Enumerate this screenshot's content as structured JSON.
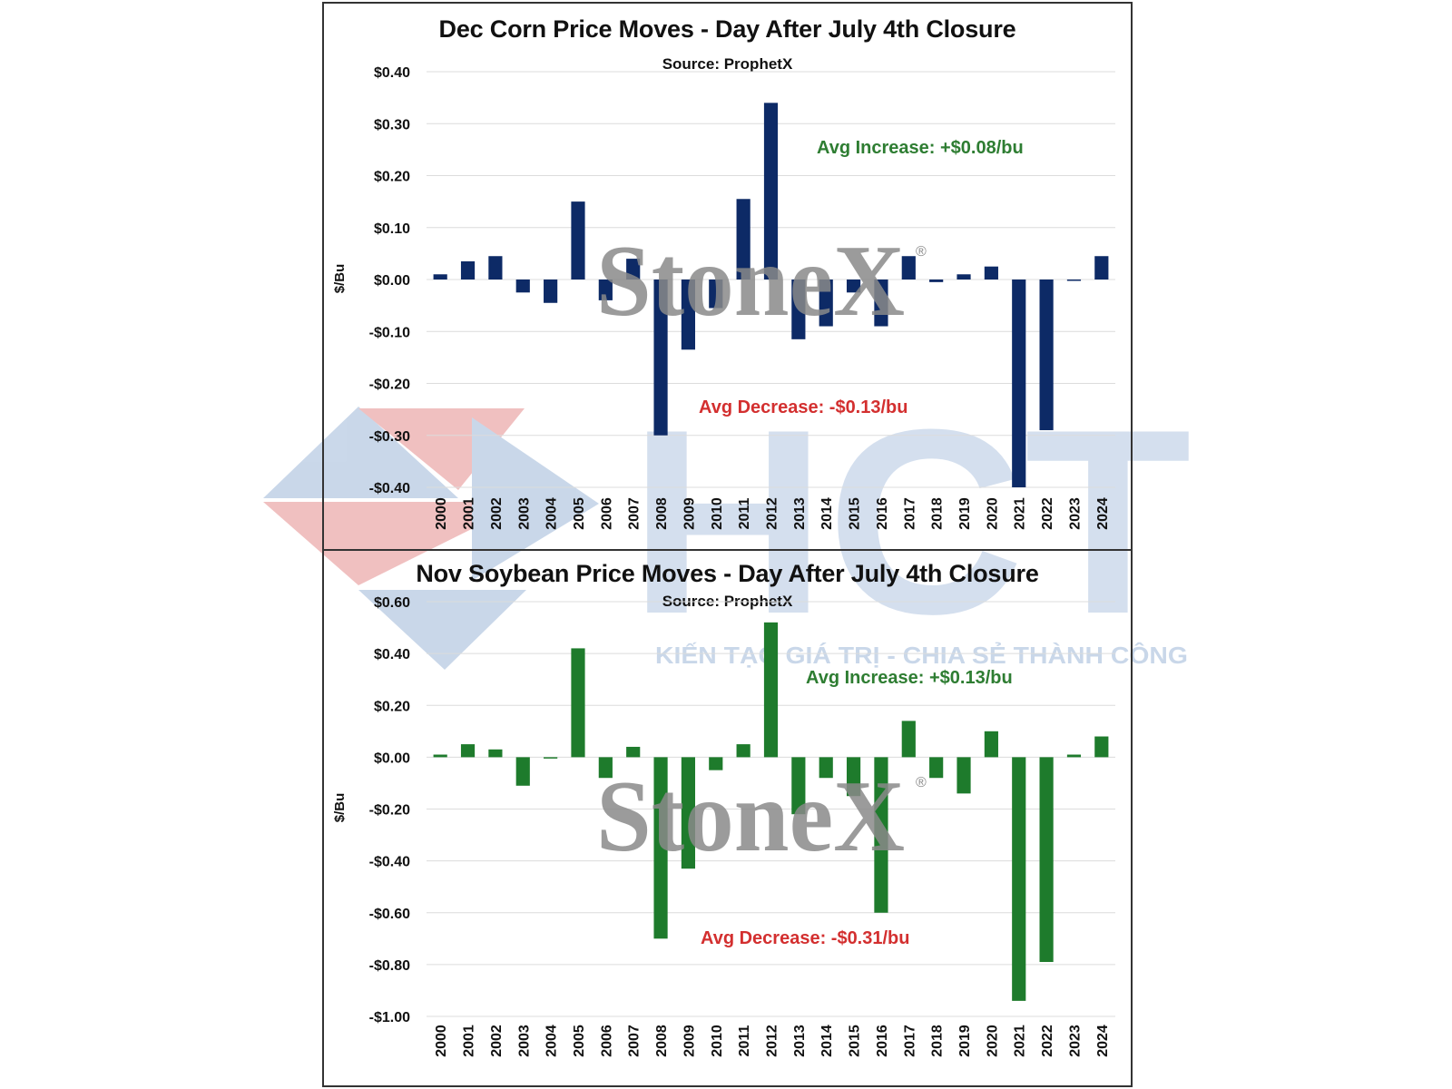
{
  "chart_data": [
    {
      "type": "bar",
      "title": "Dec Corn Price Moves - Day After July 4th Closure",
      "subtitle": "Source: ProphetX",
      "ylabel": "$/Bu",
      "xlabel": "",
      "ylim": [
        -0.4,
        0.4
      ],
      "yticks": [
        0.4,
        0.3,
        0.2,
        0.1,
        0.0,
        -0.1,
        -0.2,
        -0.3,
        -0.4
      ],
      "ytick_labels": [
        "$0.40",
        "$0.30",
        "$0.20",
        "$0.10",
        "$0.00",
        "-$0.10",
        "-$0.20",
        "-$0.30",
        "-$0.40"
      ],
      "grid": true,
      "color": "#0d2a66",
      "categories": [
        "2000",
        "2001",
        "2002",
        "2003",
        "2004",
        "2005",
        "2006",
        "2007",
        "2008",
        "2009",
        "2010",
        "2011",
        "2012",
        "2013",
        "2014",
        "2015",
        "2016",
        "2017",
        "2018",
        "2019",
        "2020",
        "2021",
        "2022",
        "2023",
        "2024"
      ],
      "values": [
        0.01,
        0.035,
        0.045,
        -0.025,
        -0.045,
        0.15,
        -0.04,
        0.04,
        -0.3,
        -0.135,
        -0.055,
        0.155,
        0.34,
        -0.115,
        -0.09,
        -0.025,
        -0.09,
        0.045,
        -0.005,
        0.01,
        0.025,
        -0.4,
        -0.29,
        0.0,
        0.045
      ],
      "annotations": [
        {
          "text": "Avg Increase:  +$0.08/bu",
          "color": "#2e7d32"
        },
        {
          "text": "Avg Decrease:  -$0.13/bu",
          "color": "#d32f2f"
        }
      ]
    },
    {
      "type": "bar",
      "title": "Nov Soybean Price Moves - Day After July 4th Closure",
      "subtitle": "Source: ProphetX",
      "ylabel": "$/Bu",
      "xlabel": "",
      "ylim": [
        -1.0,
        0.6
      ],
      "yticks": [
        0.6,
        0.4,
        0.2,
        0.0,
        -0.2,
        -0.4,
        -0.6,
        -0.8,
        -1.0
      ],
      "ytick_labels": [
        "$0.60",
        "$0.40",
        "$0.20",
        "$0.00",
        "-$0.20",
        "-$0.40",
        "-$0.60",
        "-$0.80",
        "-$1.00"
      ],
      "grid": true,
      "color": "#1e7b2c",
      "categories": [
        "2000",
        "2001",
        "2002",
        "2003",
        "2004",
        "2005",
        "2006",
        "2007",
        "2008",
        "2009",
        "2010",
        "2011",
        "2012",
        "2013",
        "2014",
        "2015",
        "2016",
        "2017",
        "2018",
        "2019",
        "2020",
        "2021",
        "2022",
        "2023",
        "2024"
      ],
      "values": [
        0.01,
        0.05,
        0.03,
        -0.11,
        0.0,
        0.42,
        -0.08,
        0.04,
        -0.7,
        -0.43,
        -0.05,
        0.05,
        0.52,
        -0.22,
        -0.08,
        -0.15,
        -0.6,
        0.14,
        -0.08,
        -0.14,
        0.1,
        -0.94,
        -0.79,
        0.01,
        0.08
      ],
      "annotations": [
        {
          "text": "Avg Increase:  +$0.13/bu",
          "color": "#2e7d32"
        },
        {
          "text": "Avg Decrease:  -$0.31/bu",
          "color": "#d32f2f"
        }
      ]
    }
  ],
  "watermarks": {
    "stonex": "StoneX",
    "stonex_mark": "®",
    "hct": "HCT",
    "hct_tagline": "KIẾN TẠO GIÁ TRỊ - CHIA SẺ THÀNH CÔNG"
  }
}
